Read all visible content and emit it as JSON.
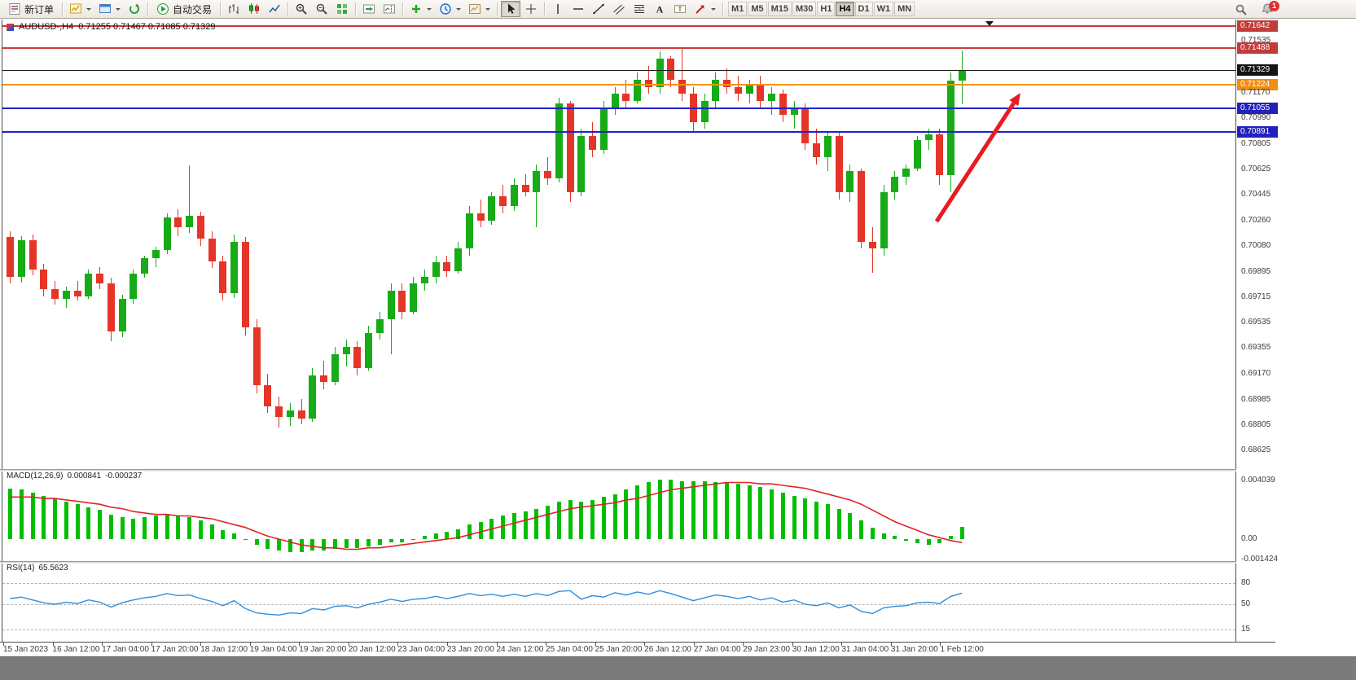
{
  "toolbar": {
    "new_order_label": "新订单",
    "autotrading_label": "自动交易",
    "timeframes": [
      "M1",
      "M5",
      "M15",
      "M30",
      "H1",
      "H4",
      "D1",
      "W1",
      "MN"
    ],
    "active_timeframe": "H4",
    "notification_badge": "1",
    "icon_names": [
      "new-order-icon",
      "new-chart-icon",
      "profiles-icon",
      "refresh-icon",
      "autotrading-icon",
      "bar-chart-icon",
      "candlestick-chart-icon",
      "line-chart-icon",
      "zoom-in-icon",
      "zoom-out-icon",
      "tile-windows-icon",
      "auto-scroll-icon",
      "chart-shift-icon",
      "indicators-icon",
      "periods-icon",
      "templates-icon",
      "cursor-icon",
      "crosshair-icon",
      "vertical-line-icon",
      "horizontal-line-icon",
      "trendline-icon",
      "channel-icon",
      "fibonacci-icon",
      "text-icon",
      "text-label-icon",
      "arrows-icon",
      "search-icon",
      "notifications-icon"
    ]
  },
  "chart": {
    "title": "AUDUSD-,H4",
    "ohlc_text": "0.71255 0.71467 0.71085 0.71329"
  },
  "indicators": {
    "macd": {
      "name": "MACD(12,26,9)",
      "main_value": "0.000841",
      "signal_value": "-0.000237"
    },
    "rsi": {
      "name": "RSI(14)",
      "value": "65.5623"
    }
  },
  "colors": {
    "bull": "#17ab17",
    "bear": "#e53528",
    "macd_histogram": "#00bf00",
    "macd_signal": "#e02525",
    "rsi_line": "#2f8fdd",
    "arrow": "#e81a22"
  },
  "price_scale": {
    "grid_labels": [
      {
        "label": "0.71535",
        "price": 0.71535
      },
      {
        "label": "0.71170",
        "price": 0.7117
      },
      {
        "label": "0.70990",
        "price": 0.7099
      },
      {
        "label": "0.70805",
        "price": 0.70805
      },
      {
        "label": "0.70625",
        "price": 0.70625
      },
      {
        "label": "0.70445",
        "price": 0.70445
      },
      {
        "label": "0.70260",
        "price": 0.7026
      },
      {
        "label": "0.70080",
        "price": 0.7008
      },
      {
        "label": "0.69895",
        "price": 0.69895
      },
      {
        "label": "0.69715",
        "price": 0.69715
      },
      {
        "label": "0.69535",
        "price": 0.69535
      },
      {
        "label": "0.69355",
        "price": 0.69355
      },
      {
        "label": "0.69170",
        "price": 0.6917
      },
      {
        "label": "0.68985",
        "price": 0.68985
      },
      {
        "label": "0.68805",
        "price": 0.68805
      },
      {
        "label": "0.68625",
        "price": 0.68625
      }
    ]
  },
  "annotations": {
    "trend_arrow": {
      "from": [
        1150,
        248
      ],
      "to": [
        1253,
        90
      ],
      "color": "#e81a22"
    }
  },
  "chart_data": {
    "type": "candlestick",
    "symbol": "AUDUSD",
    "timeframe": "H4",
    "title": "AUDUSD-,H4",
    "last_ohlc": {
      "open": 0.71255,
      "high": 0.71467,
      "low": 0.71085,
      "close": 0.71329
    },
    "price_axis_range": [
      0.6848,
      0.71688
    ],
    "horizontal_levels": [
      {
        "name": "resistance-line-upper",
        "label": "0.71642",
        "price": 0.71642,
        "color": "#cc3b3b",
        "tag_color": "#c23b3b",
        "thickness": 2
      },
      {
        "name": "resistance-line-lower",
        "label": "0.71488",
        "price": 0.71488,
        "color": "#cc3b3b",
        "tag_color": "#c23b3b",
        "thickness": 2
      },
      {
        "name": "current-price-line",
        "label": "0.71329",
        "price": 0.71329,
        "color": "#1a1a1a",
        "tag_color": "#141414",
        "thickness": 1
      },
      {
        "name": "breakout-level-line",
        "label": "0.71224",
        "price": 0.71224,
        "color": "#f5940a",
        "tag_color": "#ef8e14",
        "thickness": 2
      },
      {
        "name": "support-line-upper",
        "label": "0.71055",
        "price": 0.71055,
        "color": "#2222cc",
        "tag_color": "#2222bb",
        "thickness": 2
      },
      {
        "name": "support-line-lower",
        "label": "0.70891",
        "price": 0.70891,
        "color": "#2222cc",
        "tag_color": "#2222bb",
        "thickness": 2
      }
    ],
    "candles": [
      [
        0.7014,
        0.7018,
        0.6981,
        0.6986
      ],
      [
        0.6986,
        0.7015,
        0.6982,
        0.7012
      ],
      [
        0.7012,
        0.7016,
        0.6987,
        0.6991
      ],
      [
        0.6991,
        0.6995,
        0.6972,
        0.6977
      ],
      [
        0.6977,
        0.6983,
        0.6966,
        0.697
      ],
      [
        0.697,
        0.6979,
        0.6964,
        0.6976
      ],
      [
        0.6976,
        0.6983,
        0.6969,
        0.6972
      ],
      [
        0.6972,
        0.6991,
        0.697,
        0.6988
      ],
      [
        0.6988,
        0.6993,
        0.6977,
        0.6981
      ],
      [
        0.6981,
        0.6985,
        0.694,
        0.6947
      ],
      [
        0.6947,
        0.6973,
        0.6943,
        0.697
      ],
      [
        0.697,
        0.6991,
        0.6967,
        0.6988
      ],
      [
        0.6988,
        0.7001,
        0.6985,
        0.6999
      ],
      [
        0.6999,
        0.7007,
        0.6993,
        0.7005
      ],
      [
        0.7005,
        0.7031,
        0.7002,
        0.7028
      ],
      [
        0.7028,
        0.7034,
        0.7015,
        0.7021
      ],
      [
        0.7021,
        0.7065,
        0.7017,
        0.7029
      ],
      [
        0.7029,
        0.7032,
        0.7008,
        0.7013
      ],
      [
        0.7013,
        0.7018,
        0.6992,
        0.6997
      ],
      [
        0.6997,
        0.7001,
        0.6969,
        0.6974
      ],
      [
        0.6974,
        0.7016,
        0.6971,
        0.7011
      ],
      [
        0.7011,
        0.7014,
        0.6944,
        0.695
      ],
      [
        0.695,
        0.6956,
        0.6903,
        0.6909
      ],
      [
        0.6909,
        0.6917,
        0.6889,
        0.6894
      ],
      [
        0.6894,
        0.6901,
        0.6879,
        0.6886
      ],
      [
        0.6886,
        0.6896,
        0.688,
        0.6891
      ],
      [
        0.6891,
        0.6899,
        0.6881,
        0.6885
      ],
      [
        0.6885,
        0.6921,
        0.6883,
        0.6916
      ],
      [
        0.6916,
        0.6926,
        0.6906,
        0.6911
      ],
      [
        0.6911,
        0.6936,
        0.6909,
        0.6931
      ],
      [
        0.6931,
        0.6941,
        0.6922,
        0.6936
      ],
      [
        0.6936,
        0.694,
        0.6916,
        0.6921
      ],
      [
        0.6921,
        0.6951,
        0.6919,
        0.6946
      ],
      [
        0.6946,
        0.6961,
        0.6941,
        0.6956
      ],
      [
        0.6956,
        0.6981,
        0.6931,
        0.6976
      ],
      [
        0.6976,
        0.6981,
        0.6956,
        0.6961
      ],
      [
        0.6961,
        0.6986,
        0.6959,
        0.6981
      ],
      [
        0.6981,
        0.6991,
        0.6976,
        0.6986
      ],
      [
        0.6986,
        0.7001,
        0.6981,
        0.6996
      ],
      [
        0.6996,
        0.7001,
        0.6986,
        0.699
      ],
      [
        0.699,
        0.7011,
        0.6988,
        0.7006
      ],
      [
        0.7006,
        0.7036,
        0.7001,
        0.7031
      ],
      [
        0.7031,
        0.7041,
        0.7021,
        0.7026
      ],
      [
        0.7026,
        0.7046,
        0.7023,
        0.7043
      ],
      [
        0.7043,
        0.7051,
        0.7031,
        0.7036
      ],
      [
        0.7036,
        0.7056,
        0.7033,
        0.7051
      ],
      [
        0.7051,
        0.7059,
        0.7043,
        0.7046
      ],
      [
        0.7046,
        0.7066,
        0.7021,
        0.7061
      ],
      [
        0.7061,
        0.7071,
        0.7051,
        0.7056
      ],
      [
        0.7056,
        0.7113,
        0.7053,
        0.7109
      ],
      [
        0.7109,
        0.7111,
        0.7039,
        0.7046
      ],
      [
        0.7046,
        0.7091,
        0.7043,
        0.7086
      ],
      [
        0.7086,
        0.7096,
        0.7071,
        0.7076
      ],
      [
        0.7076,
        0.7111,
        0.7073,
        0.7106
      ],
      [
        0.7106,
        0.7121,
        0.7101,
        0.7116
      ],
      [
        0.7116,
        0.7126,
        0.7106,
        0.7111
      ],
      [
        0.7111,
        0.7131,
        0.7109,
        0.7126
      ],
      [
        0.7126,
        0.7136,
        0.7116,
        0.7121
      ],
      [
        0.7121,
        0.7146,
        0.7116,
        0.7141
      ],
      [
        0.7141,
        0.7143,
        0.7121,
        0.7126
      ],
      [
        0.7126,
        0.7149,
        0.7111,
        0.7116
      ],
      [
        0.7116,
        0.7121,
        0.7089,
        0.7096
      ],
      [
        0.7096,
        0.7116,
        0.7091,
        0.7111
      ],
      [
        0.7111,
        0.7131,
        0.7106,
        0.7126
      ],
      [
        0.7126,
        0.7134,
        0.7116,
        0.7121
      ],
      [
        0.7121,
        0.7129,
        0.7111,
        0.7116
      ],
      [
        0.7116,
        0.7126,
        0.7109,
        0.7123
      ],
      [
        0.7123,
        0.7129,
        0.7106,
        0.7111
      ],
      [
        0.7111,
        0.7121,
        0.7101,
        0.7116
      ],
      [
        0.7116,
        0.7119,
        0.7096,
        0.7101
      ],
      [
        0.7101,
        0.7111,
        0.7091,
        0.7106
      ],
      [
        0.7106,
        0.7109,
        0.7076,
        0.7081
      ],
      [
        0.7081,
        0.7091,
        0.7066,
        0.7071
      ],
      [
        0.7071,
        0.7089,
        0.7061,
        0.7086
      ],
      [
        0.7086,
        0.7089,
        0.7041,
        0.7046
      ],
      [
        0.7046,
        0.7066,
        0.7039,
        0.7061
      ],
      [
        0.7061,
        0.7063,
        0.7006,
        0.7011
      ],
      [
        0.7011,
        0.7021,
        0.6989,
        0.7006
      ],
      [
        0.7006,
        0.7051,
        0.7001,
        0.7046
      ],
      [
        0.7046,
        0.7061,
        0.7041,
        0.7057
      ],
      [
        0.7057,
        0.7066,
        0.7051,
        0.7063
      ],
      [
        0.7063,
        0.7086,
        0.7061,
        0.7083
      ],
      [
        0.7083,
        0.7091,
        0.7076,
        0.7087
      ],
      [
        0.7087,
        0.7091,
        0.7051,
        0.7058
      ],
      [
        0.7058,
        0.7131,
        0.7046,
        0.71255
      ],
      [
        0.71255,
        0.71467,
        0.71085,
        0.71329
      ]
    ],
    "indicator_panels": [
      {
        "type": "macd",
        "params": "12,26,9",
        "current_main": 0.000841,
        "current_signal": -0.000237,
        "axis_labels": [
          {
            "label": "0.004039",
            "value": 0.004039
          },
          {
            "label": "0.00",
            "value": 0
          },
          {
            "label": "-0.001424",
            "value": -0.001424
          }
        ],
        "histogram": [
          0.0035,
          0.0034,
          0.0032,
          0.003,
          0.0028,
          0.0026,
          0.0024,
          0.0022,
          0.002,
          0.0017,
          0.0015,
          0.0014,
          0.0015,
          0.0016,
          0.0017,
          0.0016,
          0.0015,
          0.0013,
          0.001,
          0.0006,
          0.0004,
          0.0,
          -0.0004,
          -0.0007,
          -0.0008,
          -0.0009,
          -0.0009,
          -0.0008,
          -0.0008,
          -0.0007,
          -0.0006,
          -0.0006,
          -0.0005,
          -0.0004,
          -0.0002,
          -0.0002,
          0.0,
          0.0002,
          0.0004,
          0.0005,
          0.0007,
          0.001,
          0.0012,
          0.0014,
          0.0016,
          0.0018,
          0.0019,
          0.0021,
          0.0023,
          0.0026,
          0.0027,
          0.0026,
          0.0027,
          0.0029,
          0.0031,
          0.0034,
          0.0037,
          0.0039,
          0.0041,
          0.0041,
          0.004,
          0.004,
          0.004,
          0.0039,
          0.0039,
          0.0038,
          0.0037,
          0.0036,
          0.0034,
          0.0032,
          0.003,
          0.0028,
          0.0026,
          0.0024,
          0.0021,
          0.0018,
          0.0013,
          0.0008,
          0.0004,
          0.0002,
          -0.0001,
          -0.0003,
          -0.0004,
          -0.0003,
          0.0002,
          0.000841
        ],
        "signal": [
          0.0029,
          0.0029,
          0.0029,
          0.0028,
          0.0028,
          0.0027,
          0.0026,
          0.0025,
          0.0024,
          0.0022,
          0.0021,
          0.0019,
          0.0018,
          0.0017,
          0.0017,
          0.0016,
          0.0016,
          0.0015,
          0.0014,
          0.0012,
          0.001,
          0.0008,
          0.0005,
          0.0002,
          0.0,
          -0.0002,
          -0.0004,
          -0.0005,
          -0.0006,
          -0.0006,
          -0.0007,
          -0.0007,
          -0.0006,
          -0.0006,
          -0.0005,
          -0.0004,
          -0.0003,
          -0.0002,
          -0.0001,
          0.0,
          0.0001,
          0.0003,
          0.0005,
          0.0007,
          0.0009,
          0.0011,
          0.0013,
          0.0015,
          0.0017,
          0.0019,
          0.0021,
          0.0022,
          0.0023,
          0.0024,
          0.0025,
          0.0027,
          0.0028,
          0.003,
          0.0032,
          0.0034,
          0.0035,
          0.0036,
          0.0037,
          0.0038,
          0.0039,
          0.0039,
          0.0039,
          0.0038,
          0.0038,
          0.0037,
          0.0036,
          0.0035,
          0.0033,
          0.0031,
          0.0029,
          0.0027,
          0.0024,
          0.002,
          0.0016,
          0.0012,
          0.0009,
          0.0006,
          0.0003,
          0.0001,
          -0.0001,
          -0.000237
        ]
      },
      {
        "type": "rsi",
        "period": 14,
        "current": 65.5623,
        "axis_labels": [
          {
            "label": "80",
            "value": 80
          },
          {
            "label": "50",
            "value": 50
          },
          {
            "label": "15",
            "value": 15
          }
        ],
        "values": [
          58,
          60,
          56,
          52,
          50,
          53,
          51,
          56,
          53,
          46,
          52,
          56,
          59,
          61,
          65,
          62,
          63,
          58,
          54,
          48,
          55,
          44,
          38,
          36,
          35,
          38,
          37,
          44,
          42,
          47,
          48,
          45,
          50,
          53,
          57,
          54,
          57,
          58,
          61,
          58,
          61,
          65,
          62,
          64,
          61,
          64,
          61,
          65,
          62,
          68,
          69,
          57,
          62,
          60,
          66,
          63,
          67,
          64,
          69,
          65,
          60,
          55,
          59,
          63,
          61,
          58,
          61,
          56,
          59,
          53,
          56,
          50,
          48,
          52,
          45,
          49,
          40,
          37,
          45,
          47,
          48,
          52,
          53,
          51,
          61,
          65.5623
        ]
      }
    ],
    "time_labels": [
      "15 Jan 2023",
      "16 Jan 12:00",
      "17 Jan 04:00",
      "17 Jan 20:00",
      "18 Jan 12:00",
      "19 Jan 04:00",
      "19 Jan 20:00",
      "20 Jan 12:00",
      "23 Jan 04:00",
      "23 Jan 20:00",
      "24 Jan 12:00",
      "25 Jan 04:00",
      "25 Jan 20:00",
      "26 Jan 12:00",
      "27 Jan 04:00",
      "29 Jan 23:00",
      "30 Jan 12:00",
      "31 Jan 04:00",
      "31 Jan 20:00",
      "1 Feb 12:00"
    ]
  }
}
